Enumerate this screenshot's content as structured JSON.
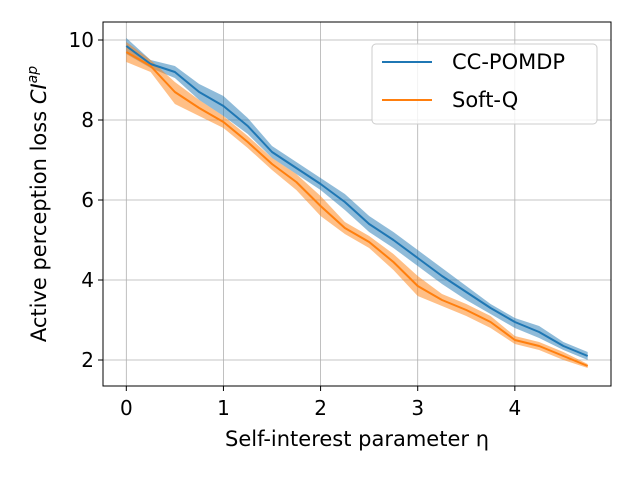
{
  "chart_data": {
    "type": "line",
    "title": "",
    "xlabel": "Self-interest parameter η",
    "ylabel_main": "Active perception loss ",
    "ylabel_symbol": "CI",
    "ylabel_sup": "ap",
    "xlim": [
      -0.24,
      4.99
    ],
    "ylim": [
      1.35,
      10.45
    ],
    "x_ticks": [
      0,
      1,
      2,
      3,
      4
    ],
    "x_tick_labels": [
      "0",
      "1",
      "2",
      "3",
      "4"
    ],
    "y_ticks": [
      2,
      4,
      6,
      8,
      10
    ],
    "y_tick_labels": [
      "2",
      "4",
      "6",
      "8",
      "10"
    ],
    "grid": true,
    "legend_position": "top-right",
    "x": [
      0,
      0.25,
      0.5,
      0.75,
      1.0,
      1.25,
      1.5,
      1.75,
      2.0,
      2.25,
      2.5,
      2.75,
      3.0,
      3.25,
      3.5,
      3.75,
      4.0,
      4.25,
      4.5,
      4.75
    ],
    "series": [
      {
        "name": "CC-POMDP",
        "color": "#1f77b4",
        "values": [
          9.85,
          9.4,
          9.2,
          8.7,
          8.35,
          7.85,
          7.2,
          6.8,
          6.4,
          5.95,
          5.4,
          5.0,
          4.55,
          4.1,
          3.7,
          3.3,
          2.95,
          2.7,
          2.35,
          2.1
        ],
        "lower": [
          9.65,
          9.3,
          9.05,
          8.5,
          8.1,
          7.65,
          7.05,
          6.65,
          6.25,
          5.75,
          5.2,
          4.8,
          4.35,
          3.9,
          3.5,
          3.15,
          2.8,
          2.55,
          2.25,
          2.0
        ],
        "upper": [
          10.05,
          9.5,
          9.35,
          8.9,
          8.6,
          8.05,
          7.35,
          6.95,
          6.55,
          6.15,
          5.6,
          5.2,
          4.75,
          4.3,
          3.85,
          3.4,
          3.05,
          2.85,
          2.45,
          2.2
        ]
      },
      {
        "name": "Soft-Q",
        "color": "#ff7f0e",
        "values": [
          9.7,
          9.35,
          8.7,
          8.3,
          7.95,
          7.45,
          6.9,
          6.45,
          5.85,
          5.3,
          4.95,
          4.45,
          3.85,
          3.5,
          3.25,
          2.95,
          2.5,
          2.35,
          2.1,
          1.85
        ],
        "lower": [
          9.45,
          9.2,
          8.4,
          8.1,
          7.8,
          7.3,
          6.75,
          6.25,
          5.6,
          5.15,
          4.8,
          4.25,
          3.6,
          3.35,
          3.1,
          2.8,
          2.4,
          2.25,
          2.0,
          1.8
        ],
        "upper": [
          9.95,
          9.5,
          8.95,
          8.5,
          8.1,
          7.6,
          7.05,
          6.65,
          6.1,
          5.45,
          5.1,
          4.65,
          4.1,
          3.65,
          3.4,
          3.1,
          2.6,
          2.45,
          2.2,
          1.9
        ]
      }
    ]
  }
}
